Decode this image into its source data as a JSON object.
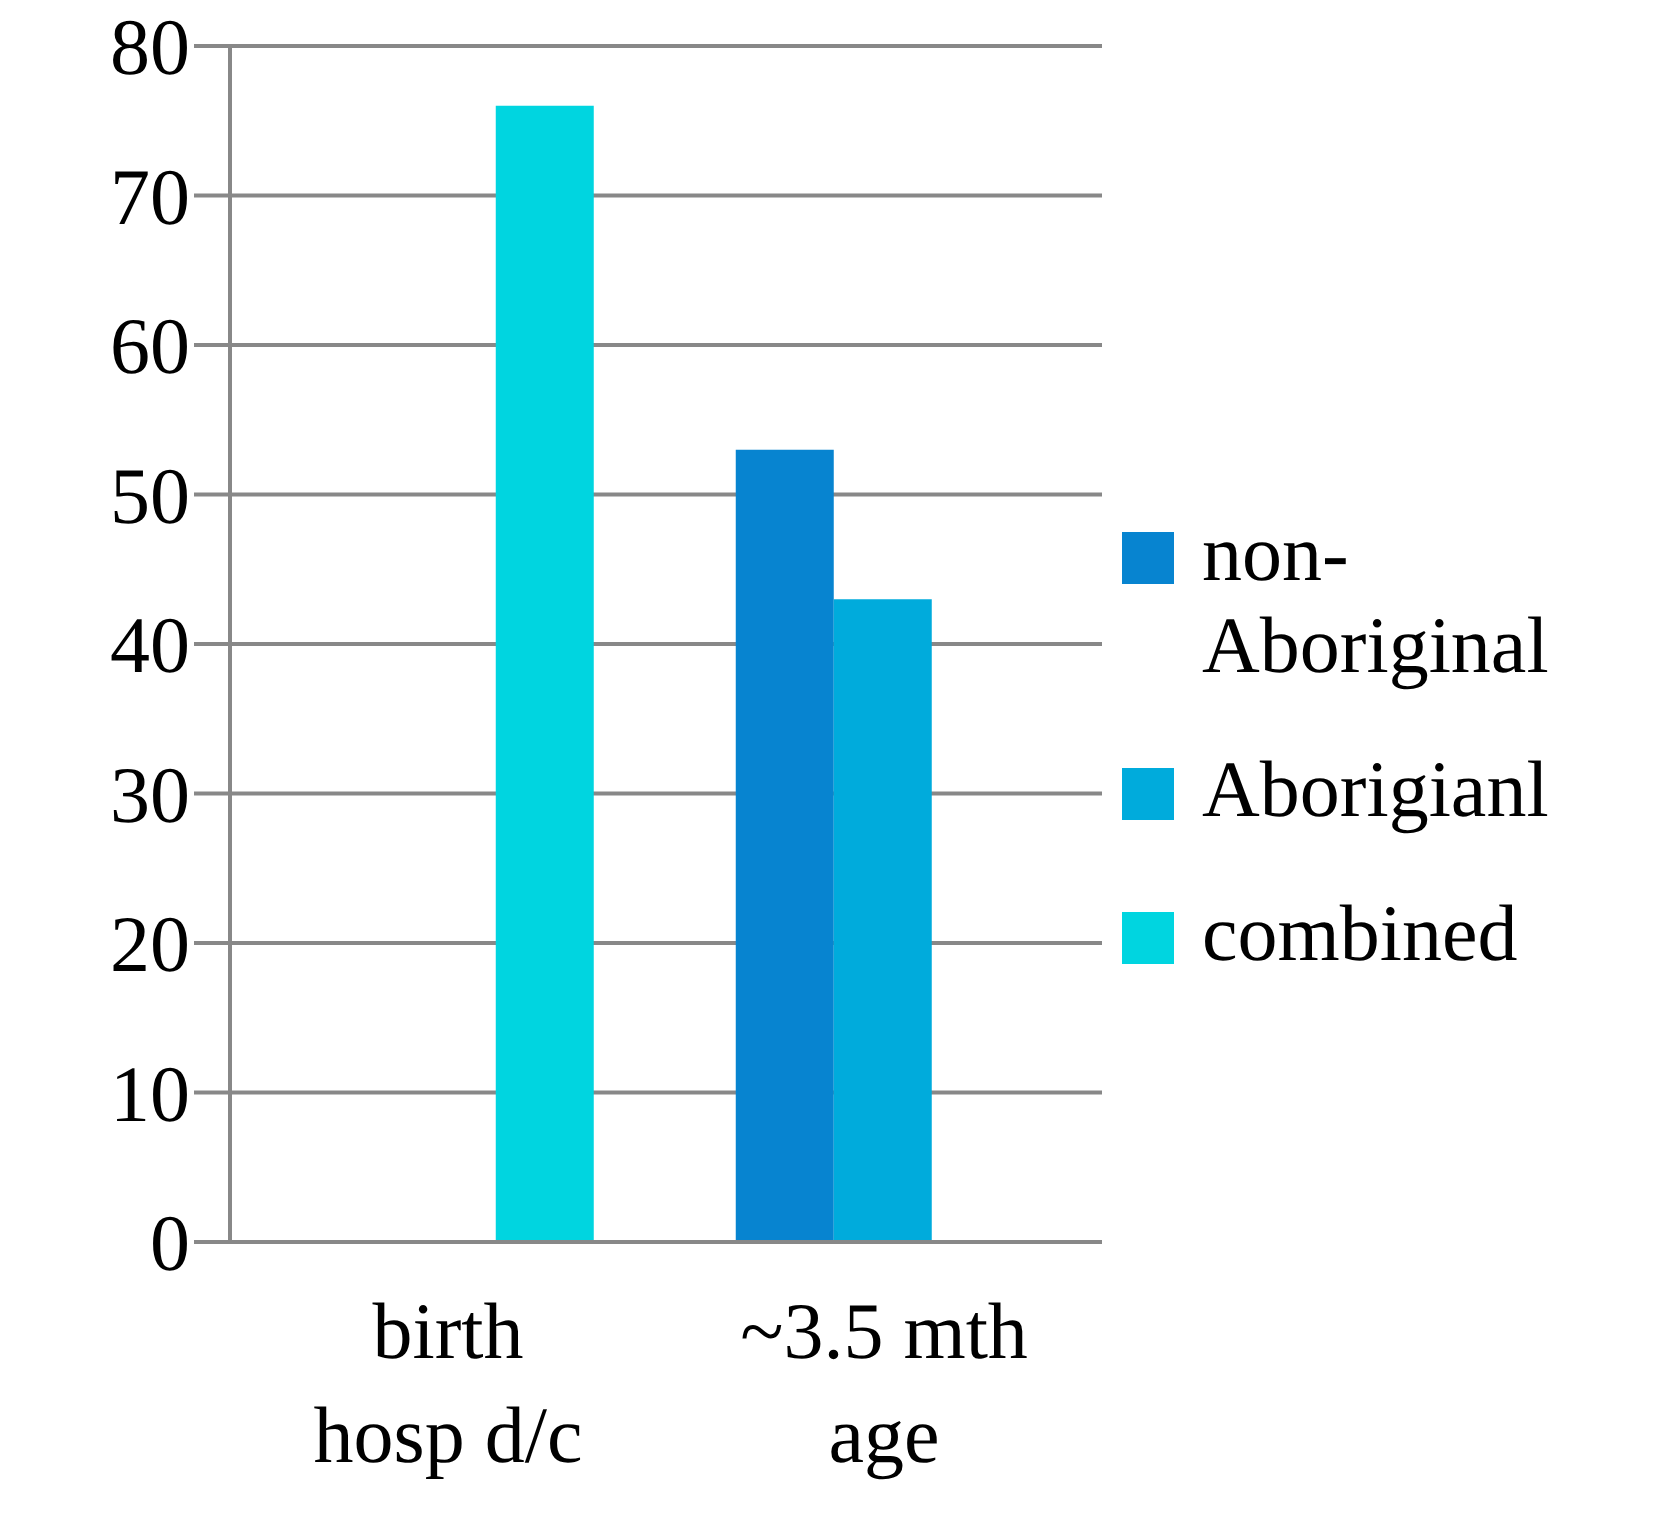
{
  "chart_data": {
    "type": "bar",
    "categories": [
      "birth hosp d/c",
      "~3.5 mth age"
    ],
    "series": [
      {
        "name": "non-Aboriginal",
        "color": "#0784d0",
        "values": [
          null,
          53
        ]
      },
      {
        "name": "Aborigianl",
        "color": "#00abdc",
        "values": [
          null,
          43
        ]
      },
      {
        "name": "combined",
        "color": "#00d5e0",
        "values": [
          76,
          null
        ]
      }
    ],
    "ylim": [
      0,
      80
    ],
    "yticks": [
      0,
      10,
      20,
      30,
      40,
      50,
      60,
      70,
      80
    ],
    "grid": "y",
    "legend": "right"
  }
}
